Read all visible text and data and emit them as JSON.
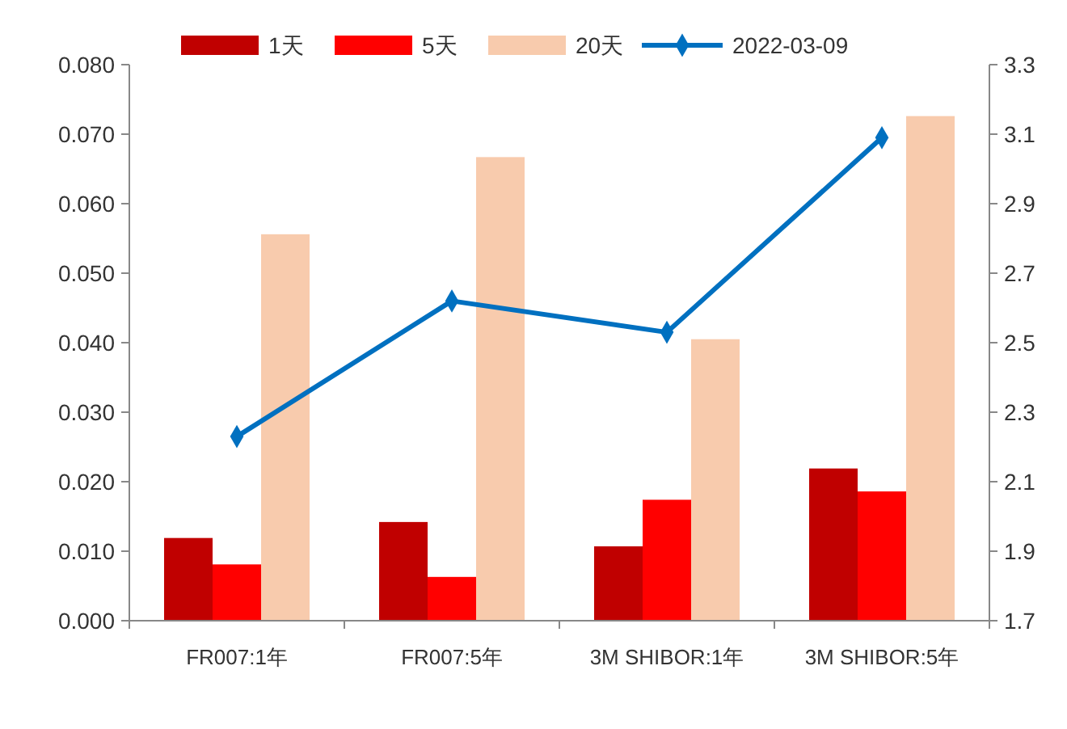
{
  "chart_data": {
    "type": "bar",
    "categories": [
      "FR007:1年",
      "FR007:5年",
      "3M SHIBOR:1年",
      "3M SHIBOR:5年"
    ],
    "series": [
      {
        "name": "1天",
        "color": "#c00000",
        "values": [
          0.0119,
          0.0142,
          0.0107,
          0.0219
        ]
      },
      {
        "name": "5天",
        "color": "#ff0000",
        "values": [
          0.0081,
          0.0063,
          0.0174,
          0.0186
        ]
      },
      {
        "name": "20天",
        "color": "#f8cbad",
        "values": [
          0.0556,
          0.0667,
          0.0405,
          0.0726
        ]
      },
      {
        "name": "2022-03-09",
        "type": "line",
        "axis": "y2",
        "color": "#0070c0",
        "marker": "diamond",
        "values": [
          2.23,
          2.62,
          2.53,
          3.09
        ]
      }
    ],
    "ylim": [
      0,
      0.08
    ],
    "yticks": [
      {
        "value": 0,
        "label": "0.000"
      },
      {
        "value": 0.01,
        "label": "0.010"
      },
      {
        "value": 0.02,
        "label": "0.020"
      },
      {
        "value": 0.03,
        "label": "0.030"
      },
      {
        "value": 0.04,
        "label": "0.040"
      },
      {
        "value": 0.05,
        "label": "0.050"
      },
      {
        "value": 0.06,
        "label": "0.060"
      },
      {
        "value": 0.07,
        "label": "0.070"
      },
      {
        "value": 0.08,
        "label": "0.080"
      }
    ],
    "y2lim": [
      1.7,
      3.3
    ],
    "y2ticks": [
      {
        "value": 1.7,
        "label": "1.7"
      },
      {
        "value": 1.9,
        "label": "1.9"
      },
      {
        "value": 2.1,
        "label": "2.1"
      },
      {
        "value": 2.3,
        "label": "2.3"
      },
      {
        "value": 2.5,
        "label": "2.5"
      },
      {
        "value": 2.7,
        "label": "2.7"
      },
      {
        "value": 2.9,
        "label": "2.9"
      },
      {
        "value": 3.1,
        "label": "3.1"
      },
      {
        "value": 3.3,
        "label": "3.3"
      }
    ],
    "grid": false,
    "legend": "top"
  }
}
